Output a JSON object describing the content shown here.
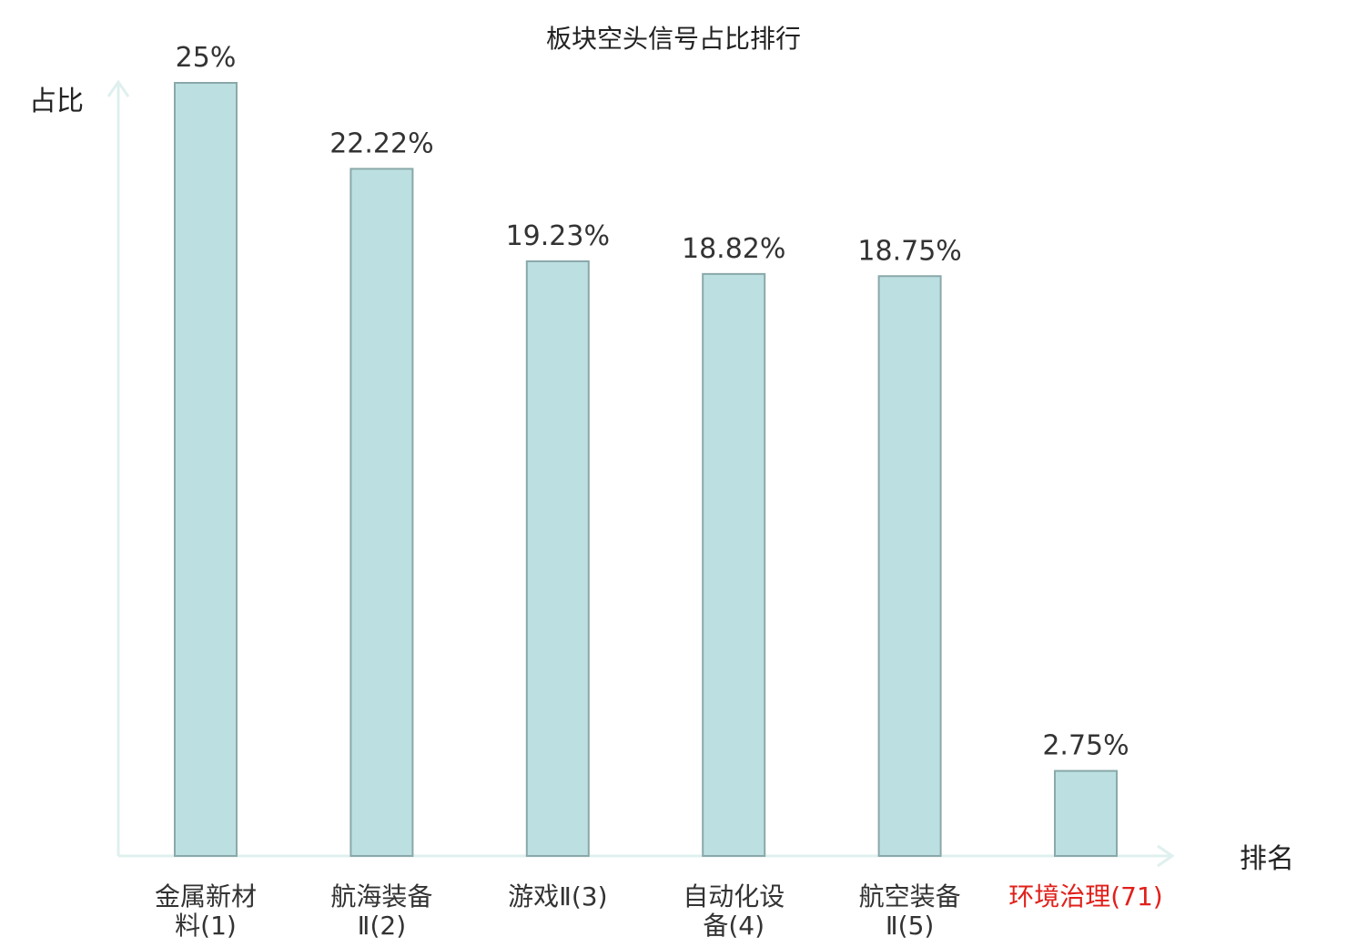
{
  "chart_data": {
    "type": "bar",
    "title": "板块空头信号占比排行",
    "xlabel": "排名",
    "ylabel": "占比",
    "ylim": [
      0,
      25
    ],
    "grid": false,
    "categories": [
      [
        "金属新材",
        "料(1)"
      ],
      [
        "航海装备",
        "Ⅱ(2)"
      ],
      [
        "游戏Ⅱ(3)"
      ],
      [
        "自动化设",
        "备(4)"
      ],
      [
        "航空装备",
        "Ⅱ(5)"
      ],
      [
        "环境治理(71)"
      ]
    ],
    "values": [
      25,
      22.22,
      19.23,
      18.82,
      18.75,
      2.75
    ],
    "value_labels": [
      "25%",
      "22.22%",
      "19.23%",
      "18.82%",
      "18.75%",
      "2.75%"
    ],
    "highlight_index": 5
  },
  "colors": {
    "bar_fill": "#bce0e2",
    "bar_stroke": "#8aa8a9",
    "axis": "#dff0ee",
    "highlight_text": "#e0201b"
  }
}
